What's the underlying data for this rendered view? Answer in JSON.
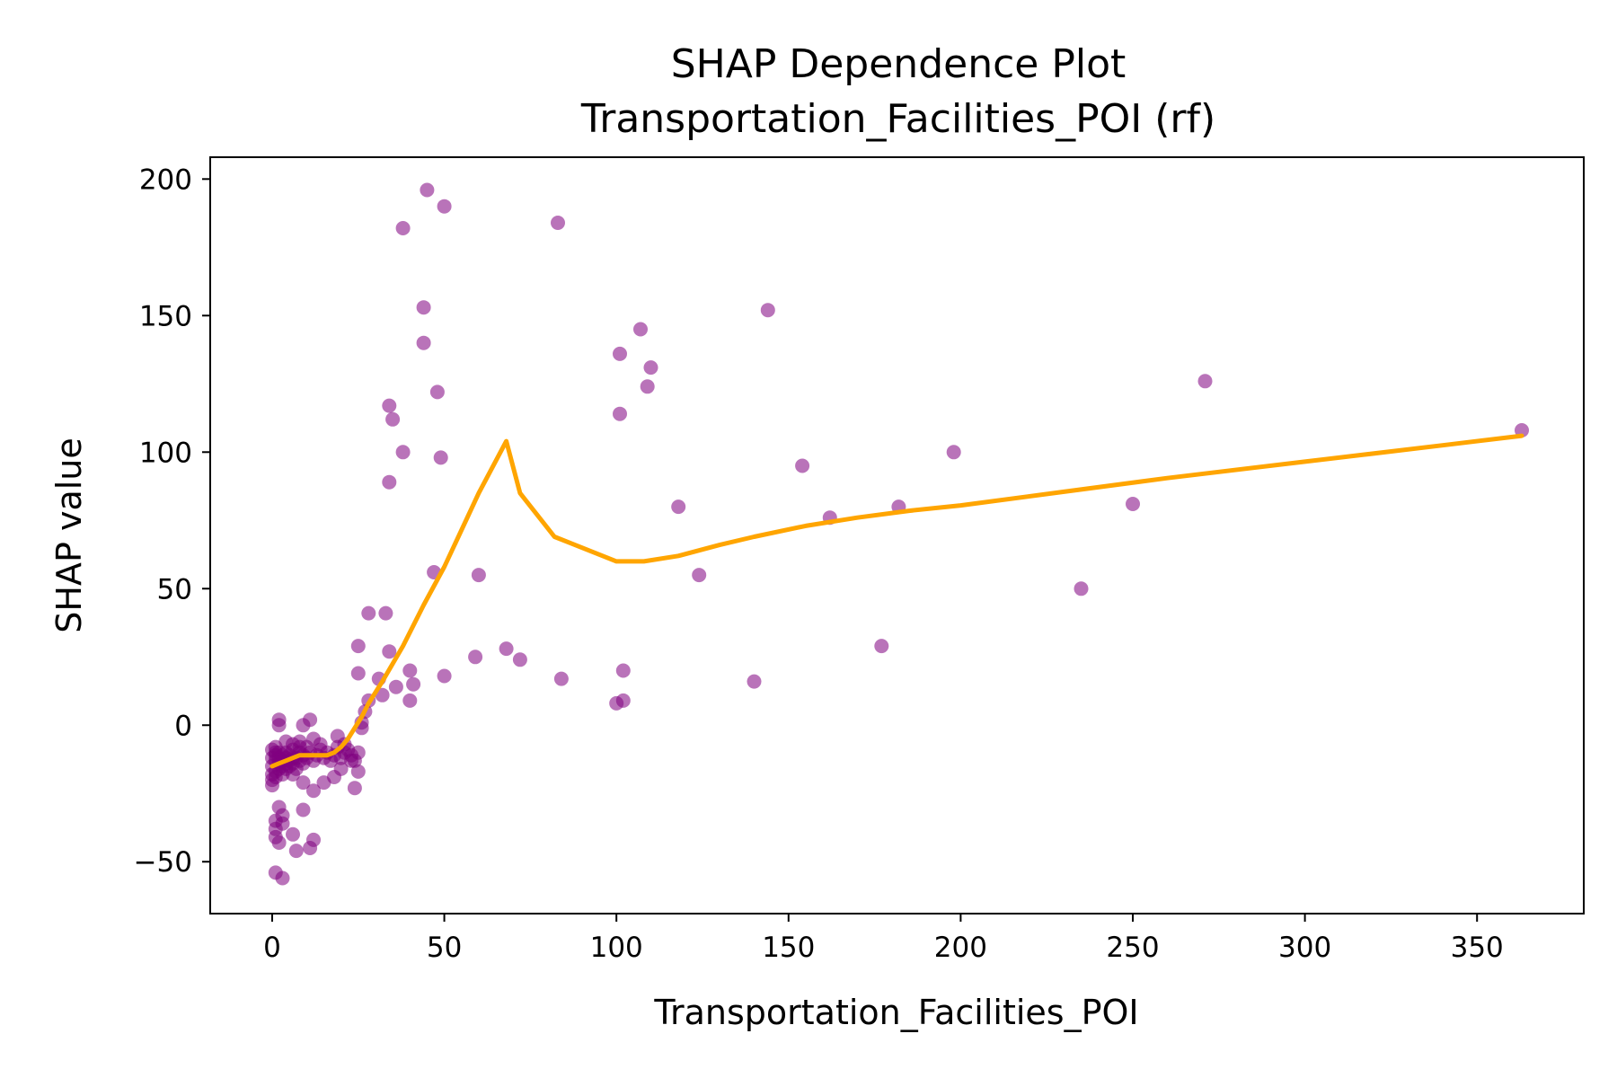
{
  "chart_data": {
    "type": "scatter",
    "title": "SHAP Dependence Plot",
    "subtitle": "Transportation_Facilities_POI (rf)",
    "xlabel": "Transportation_Facilities_POI",
    "ylabel": "SHAP value",
    "xlim": [
      -18,
      381
    ],
    "ylim": [
      -69,
      208
    ],
    "xticks": [
      0,
      50,
      100,
      150,
      200,
      250,
      300,
      350
    ],
    "yticks": [
      -50,
      0,
      50,
      100,
      150,
      200
    ],
    "xtick_labels": [
      "0",
      "50",
      "100",
      "150",
      "200",
      "250",
      "300",
      "350"
    ],
    "ytick_labels": [
      "−50",
      "0",
      "50",
      "100",
      "150",
      "200"
    ],
    "grid": false,
    "colors": {
      "points": "#800080",
      "trend": "#FFA500"
    },
    "series": [
      {
        "type": "scatter",
        "points": [
          [
            0,
            -15
          ],
          [
            0,
            -18
          ],
          [
            0,
            -20
          ],
          [
            0,
            -22
          ],
          [
            0,
            -12
          ],
          [
            1,
            -11
          ],
          [
            1,
            -13
          ],
          [
            1,
            -17
          ],
          [
            1,
            -10
          ],
          [
            1,
            -19
          ],
          [
            2,
            -14
          ],
          [
            2,
            -12
          ],
          [
            2,
            -16
          ],
          [
            2,
            -10
          ],
          [
            3,
            -13
          ],
          [
            3,
            -11
          ],
          [
            3,
            -15
          ],
          [
            3,
            -18
          ],
          [
            4,
            -12
          ],
          [
            4,
            -14
          ],
          [
            4,
            -16
          ],
          [
            4,
            -10
          ],
          [
            5,
            -11
          ],
          [
            5,
            -13
          ],
          [
            5,
            -15
          ],
          [
            6,
            -12
          ],
          [
            6,
            -14
          ],
          [
            6,
            -9
          ],
          [
            7,
            -12
          ],
          [
            7,
            -16
          ],
          [
            8,
            -10
          ],
          [
            8,
            -13
          ],
          [
            8,
            -6
          ],
          [
            9,
            -11
          ],
          [
            9,
            -14
          ],
          [
            10,
            -8
          ],
          [
            10,
            -12
          ],
          [
            11,
            -10
          ],
          [
            12,
            -13
          ],
          [
            13,
            -11
          ],
          [
            14,
            -9
          ],
          [
            15,
            -12
          ],
          [
            16,
            -10
          ],
          [
            17,
            -13
          ],
          [
            18,
            -11
          ],
          [
            19,
            -8
          ],
          [
            20,
            -12
          ],
          [
            21,
            -10
          ],
          [
            22,
            -9
          ],
          [
            23,
            -11
          ],
          [
            24,
            -13
          ],
          [
            25,
            -10
          ],
          [
            2,
            2
          ],
          [
            2,
            0
          ],
          [
            9,
            0
          ],
          [
            11,
            2
          ],
          [
            0,
            -9
          ],
          [
            1,
            -8
          ],
          [
            4,
            -6
          ],
          [
            6,
            -7
          ],
          [
            8,
            -8
          ],
          [
            12,
            -5
          ],
          [
            14,
            -7
          ],
          [
            19,
            -4
          ],
          [
            21,
            -7
          ],
          [
            6,
            -18
          ],
          [
            9,
            -21
          ],
          [
            12,
            -24
          ],
          [
            15,
            -21
          ],
          [
            18,
            -19
          ],
          [
            20,
            -16
          ],
          [
            23,
            -13
          ],
          [
            24,
            -23
          ],
          [
            25,
            -17
          ],
          [
            1,
            -35
          ],
          [
            1,
            -38
          ],
          [
            1,
            -41
          ],
          [
            2,
            -30
          ],
          [
            2,
            -43
          ],
          [
            3,
            -33
          ],
          [
            3,
            -36
          ],
          [
            6,
            -40
          ],
          [
            7,
            -46
          ],
          [
            9,
            -31
          ],
          [
            11,
            -45
          ],
          [
            12,
            -42
          ],
          [
            1,
            -54
          ],
          [
            3,
            -56
          ],
          [
            26,
            -1
          ],
          [
            26,
            1
          ],
          [
            27,
            5
          ],
          [
            28,
            9
          ],
          [
            25,
            19
          ],
          [
            25,
            29
          ],
          [
            28,
            41
          ],
          [
            31,
            17
          ],
          [
            32,
            11
          ],
          [
            33,
            41
          ],
          [
            34,
            27
          ],
          [
            36,
            14
          ],
          [
            40,
            9
          ],
          [
            40,
            20
          ],
          [
            41,
            15
          ],
          [
            34,
            89
          ],
          [
            34,
            117
          ],
          [
            35,
            112
          ],
          [
            38,
            100
          ],
          [
            38,
            182
          ],
          [
            44,
            140
          ],
          [
            44,
            153
          ],
          [
            45,
            196
          ],
          [
            47,
            56
          ],
          [
            48,
            122
          ],
          [
            49,
            98
          ],
          [
            50,
            190
          ],
          [
            50,
            18
          ],
          [
            59,
            25
          ],
          [
            60,
            55
          ],
          [
            68,
            28
          ],
          [
            72,
            24
          ],
          [
            83,
            184
          ],
          [
            84,
            17
          ],
          [
            100,
            8
          ],
          [
            101,
            136
          ],
          [
            101,
            114
          ],
          [
            102,
            9
          ],
          [
            102,
            20
          ],
          [
            107,
            145
          ],
          [
            109,
            124
          ],
          [
            110,
            131
          ],
          [
            118,
            80
          ],
          [
            124,
            55
          ],
          [
            140,
            16
          ],
          [
            144,
            152
          ],
          [
            154,
            95
          ],
          [
            162,
            76
          ],
          [
            177,
            29
          ],
          [
            182,
            80
          ],
          [
            198,
            100
          ],
          [
            235,
            50
          ],
          [
            250,
            81
          ],
          [
            271,
            126
          ],
          [
            363,
            108
          ]
        ]
      },
      {
        "type": "line",
        "points": [
          [
            0,
            -15
          ],
          [
            2,
            -14
          ],
          [
            4,
            -13
          ],
          [
            6,
            -12
          ],
          [
            8,
            -11
          ],
          [
            10,
            -11
          ],
          [
            12,
            -11
          ],
          [
            14,
            -11
          ],
          [
            16,
            -11
          ],
          [
            18,
            -10
          ],
          [
            20,
            -8
          ],
          [
            22,
            -5
          ],
          [
            24,
            -1
          ],
          [
            26,
            3
          ],
          [
            28,
            8
          ],
          [
            32,
            16
          ],
          [
            38,
            29
          ],
          [
            44,
            44
          ],
          [
            50,
            58
          ],
          [
            60,
            85
          ],
          [
            68,
            104
          ],
          [
            72,
            85
          ],
          [
            82,
            69
          ],
          [
            90,
            65
          ],
          [
            100,
            60
          ],
          [
            108,
            60
          ],
          [
            118,
            62
          ],
          [
            130,
            66
          ],
          [
            140,
            69
          ],
          [
            155,
            73
          ],
          [
            170,
            76
          ],
          [
            185,
            78.5
          ],
          [
            200,
            80.5
          ],
          [
            230,
            85.5
          ],
          [
            260,
            90.5
          ],
          [
            300,
            96.5
          ],
          [
            340,
            102.5
          ],
          [
            363,
            106
          ]
        ]
      }
    ]
  }
}
